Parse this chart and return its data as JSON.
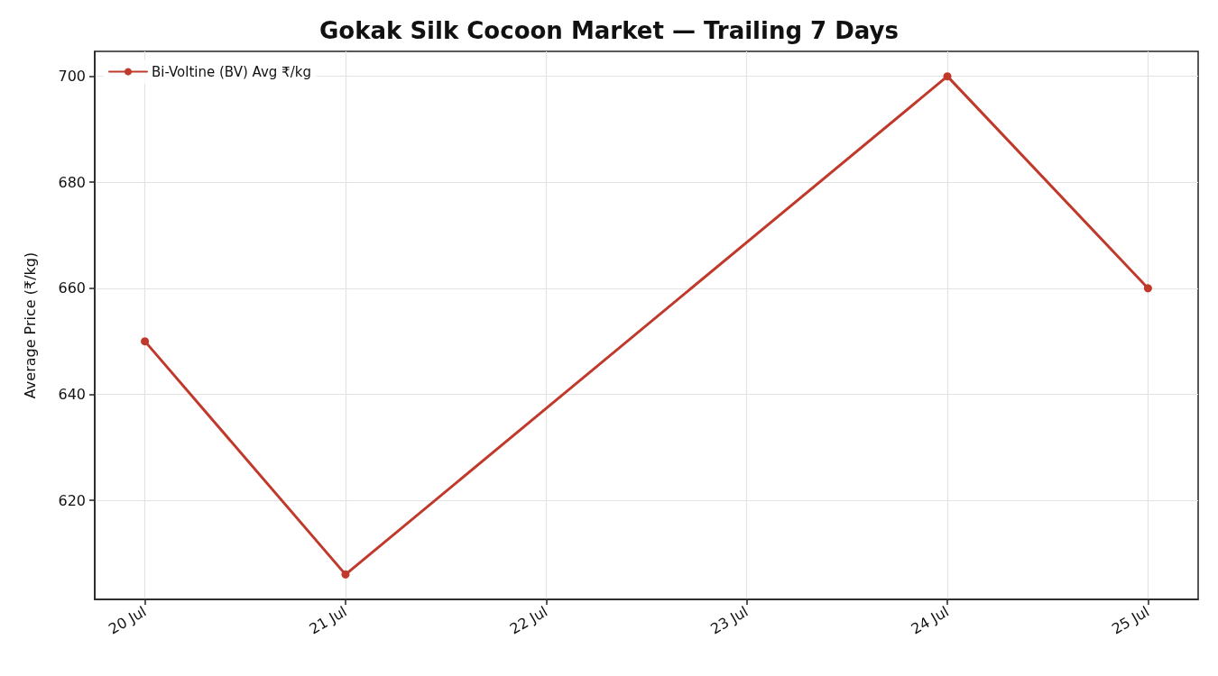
{
  "chart_data": {
    "type": "line",
    "title": "Gokak Silk Cocoon Market — Trailing 7 Days",
    "ylabel": "Average Price (₹/kg)",
    "x": [
      "--07-20",
      "--07-21",
      "--07-24",
      "--07-25"
    ],
    "series": [
      {
        "name": "Bi-Voltine (BV) Avg ₹/kg",
        "color": "#c0392b",
        "values": [
          650,
          606,
          700,
          660
        ]
      }
    ],
    "xlim": [
      "--07-19T18:00",
      "--07-25T06:00"
    ],
    "xticks": [
      {
        "value": "--07-20",
        "label": "20 Jul"
      },
      {
        "value": "--07-21",
        "label": "21 Jul"
      },
      {
        "value": "--07-22",
        "label": "22 Jul"
      },
      {
        "value": "--07-23",
        "label": "23 Jul"
      },
      {
        "value": "--07-24",
        "label": "24 Jul"
      },
      {
        "value": "--07-25",
        "label": "25 Jul"
      }
    ],
    "ylim": [
      601.3,
      704.7
    ],
    "yticks": [
      620,
      640,
      660,
      680,
      700
    ],
    "grid": true,
    "legend": "top left",
    "marker": "circle",
    "line_style": "solid"
  }
}
